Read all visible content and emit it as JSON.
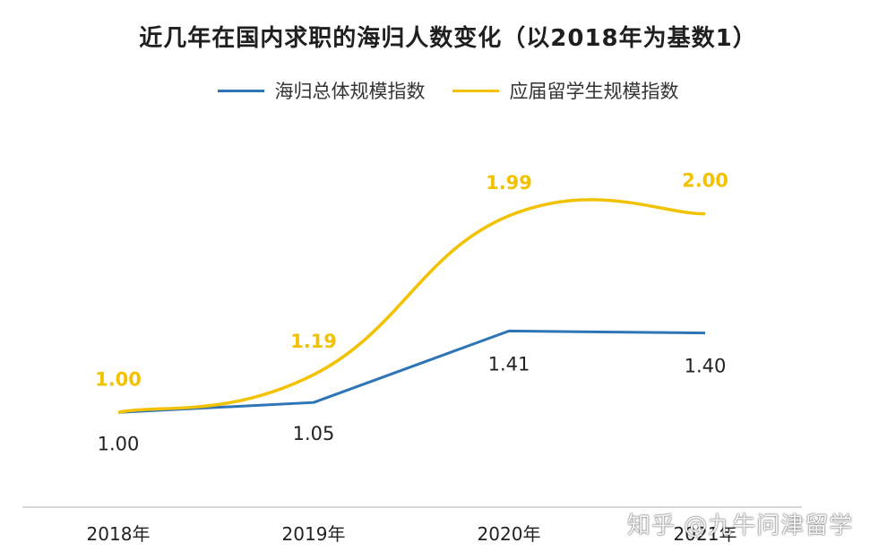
{
  "chart_data": {
    "type": "line",
    "title": "近几年在国内求职的海归人数变化（以2018年为基数1）",
    "categories": [
      "2018年",
      "2019年",
      "2020年",
      "2021年"
    ],
    "series": [
      {
        "name": "海归总体规模指数",
        "color": "#2e75b6",
        "values": [
          1.0,
          1.05,
          1.41,
          1.4
        ],
        "labels": [
          "1.00",
          "1.05",
          "1.41",
          "1.40"
        ]
      },
      {
        "name": "应届留学生规模指数",
        "color": "#f2c200",
        "values": [
          1.0,
          1.19,
          1.99,
          2.0
        ],
        "labels": [
          "1.00",
          "1.19",
          "1.99",
          "2.00"
        ]
      }
    ],
    "ylim": [
      0.55,
      2.4
    ],
    "grid": false,
    "legend_position": "top"
  },
  "watermark": "知乎 @九牛问津留学"
}
